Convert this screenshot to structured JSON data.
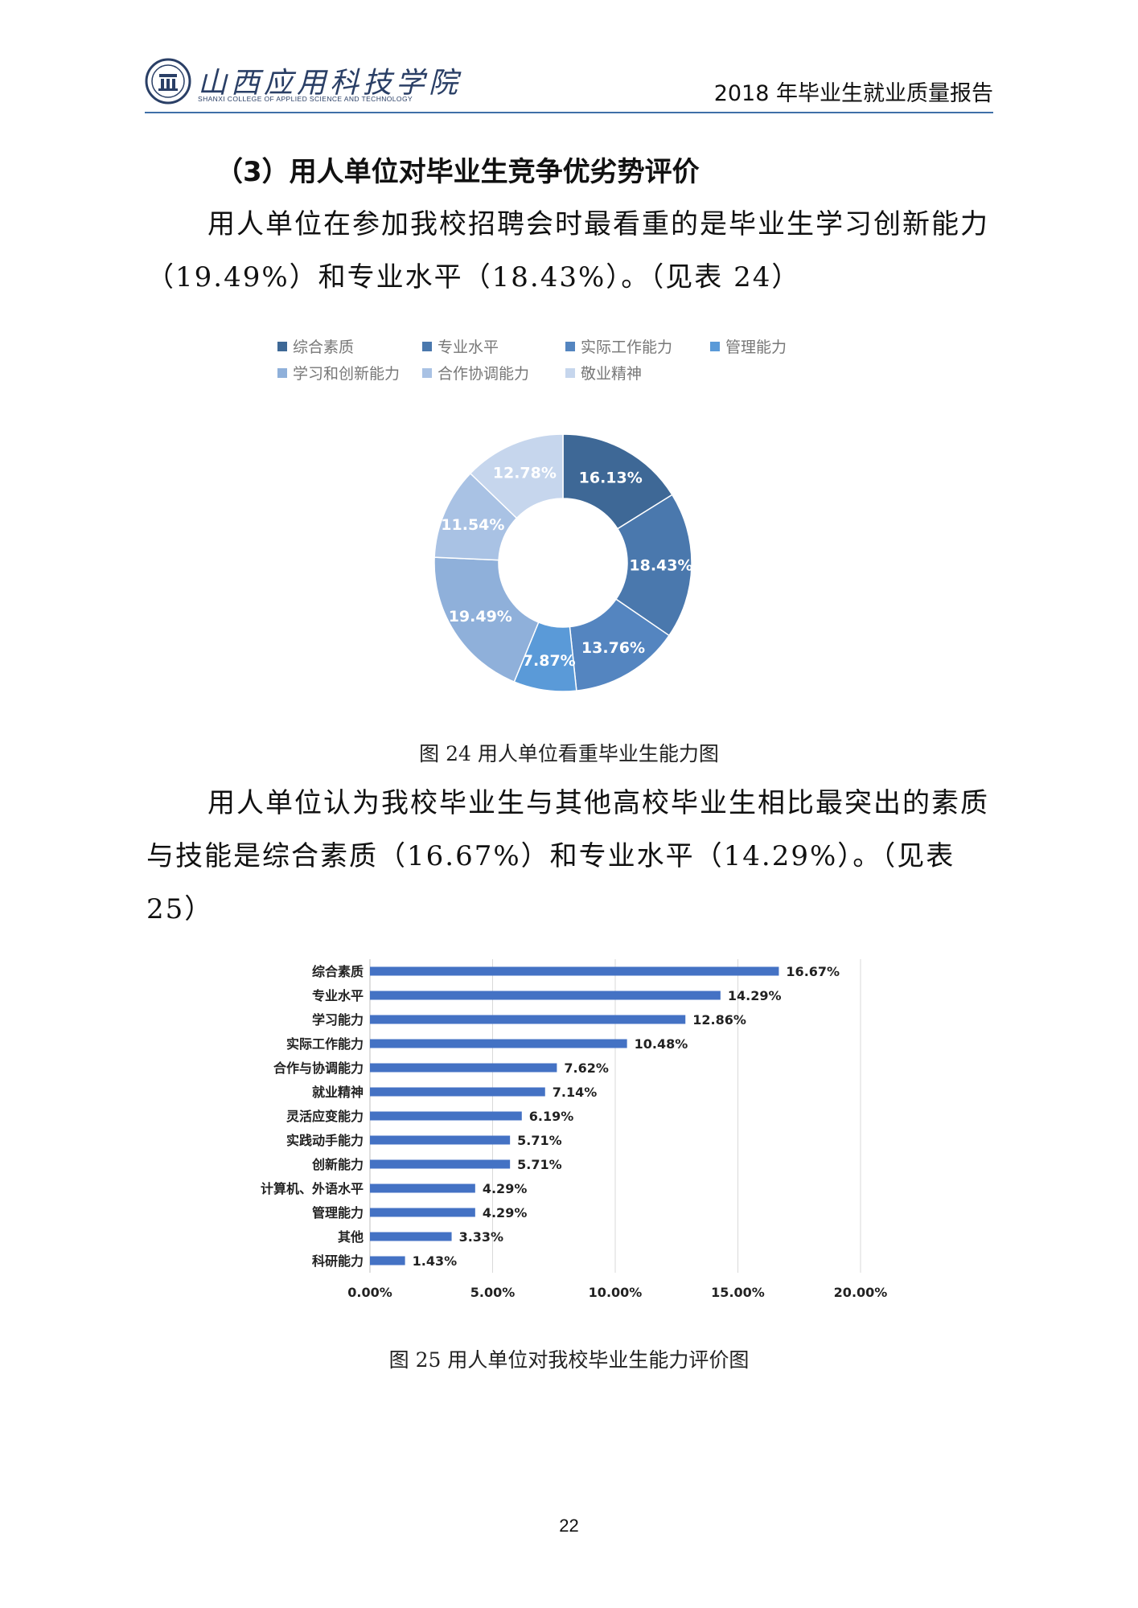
{
  "header": {
    "school_name_cn": "山西应用科技学院",
    "school_name_en": "SHANXI COLLEGE OF APPLIED SCIENCE AND TECHNOLOGY",
    "report_title": "2018 年毕业生就业质量报告"
  },
  "section": {
    "heading": "（3）用人单位对毕业生竞争优劣势评价",
    "para1": "用人单位在参加我校招聘会时最看重的是毕业生学习创新能力（19.49%）和专业水平（18.43%）。（见表 24）",
    "para2": "用人单位认为我校毕业生与其他高校毕业生相比最突出的素质与技能是综合素质（16.67%）和专业水平（14.29%）。（见表 25）"
  },
  "chart_data": [
    {
      "type": "pie",
      "title": "",
      "legend_position": "top",
      "legend": [
        "综合素质",
        "专业水平",
        "实际工作能力",
        "管理能力",
        "学习和创新能力",
        "合作协调能力",
        "敬业精神"
      ],
      "slices": [
        {
          "label": "综合素质",
          "value": 16.13,
          "value_label": "16.13%",
          "color": "#3e6896"
        },
        {
          "label": "专业水平",
          "value": 18.43,
          "value_label": "18.43%",
          "color": "#4a78ad"
        },
        {
          "label": "实际工作能力",
          "value": 13.76,
          "value_label": "13.76%",
          "color": "#5485c0"
        },
        {
          "label": "管理能力",
          "value": 7.87,
          "value_label": "7.87%",
          "color": "#5a9ad8"
        },
        {
          "label": "学习和创新能力",
          "value": 19.49,
          "value_label": "19.49%",
          "color": "#8fb0da"
        },
        {
          "label": "合作协调能力",
          "value": 11.54,
          "value_label": "11.54%",
          "color": "#a9c2e4"
        },
        {
          "label": "敬业精神",
          "value": 12.78,
          "value_label": "12.78%",
          "color": "#c6d6ed"
        }
      ]
    },
    {
      "type": "bar",
      "orientation": "horizontal",
      "title": "",
      "categories": [
        "综合素质",
        "专业水平",
        "学习能力",
        "实际工作能力",
        "合作与协调能力",
        "就业精神",
        "灵活应变能力",
        "实践动手能力",
        "创新能力",
        "计算机、外语水平",
        "管理能力",
        "其他",
        "科研能力"
      ],
      "values": [
        16.67,
        14.29,
        12.86,
        10.48,
        7.62,
        7.14,
        6.19,
        5.71,
        5.71,
        4.29,
        4.29,
        3.33,
        1.43
      ],
      "value_labels": [
        "16.67%",
        "14.29%",
        "12.86%",
        "10.48%",
        "7.62%",
        "7.14%",
        "6.19%",
        "5.71%",
        "5.71%",
        "4.29%",
        "4.29%",
        "3.33%",
        "1.43%"
      ],
      "xlim": [
        0,
        20
      ],
      "x_ticks": [
        "0.00%",
        "5.00%",
        "10.00%",
        "15.00%",
        "20.00%"
      ],
      "grid": true,
      "bar_color": "#4472c4"
    }
  ],
  "captions": {
    "fig24": "图 24 用人单位看重毕业生能力图",
    "fig25": "图 25 用人单位对我校毕业生能力评价图"
  },
  "page_number": "22"
}
